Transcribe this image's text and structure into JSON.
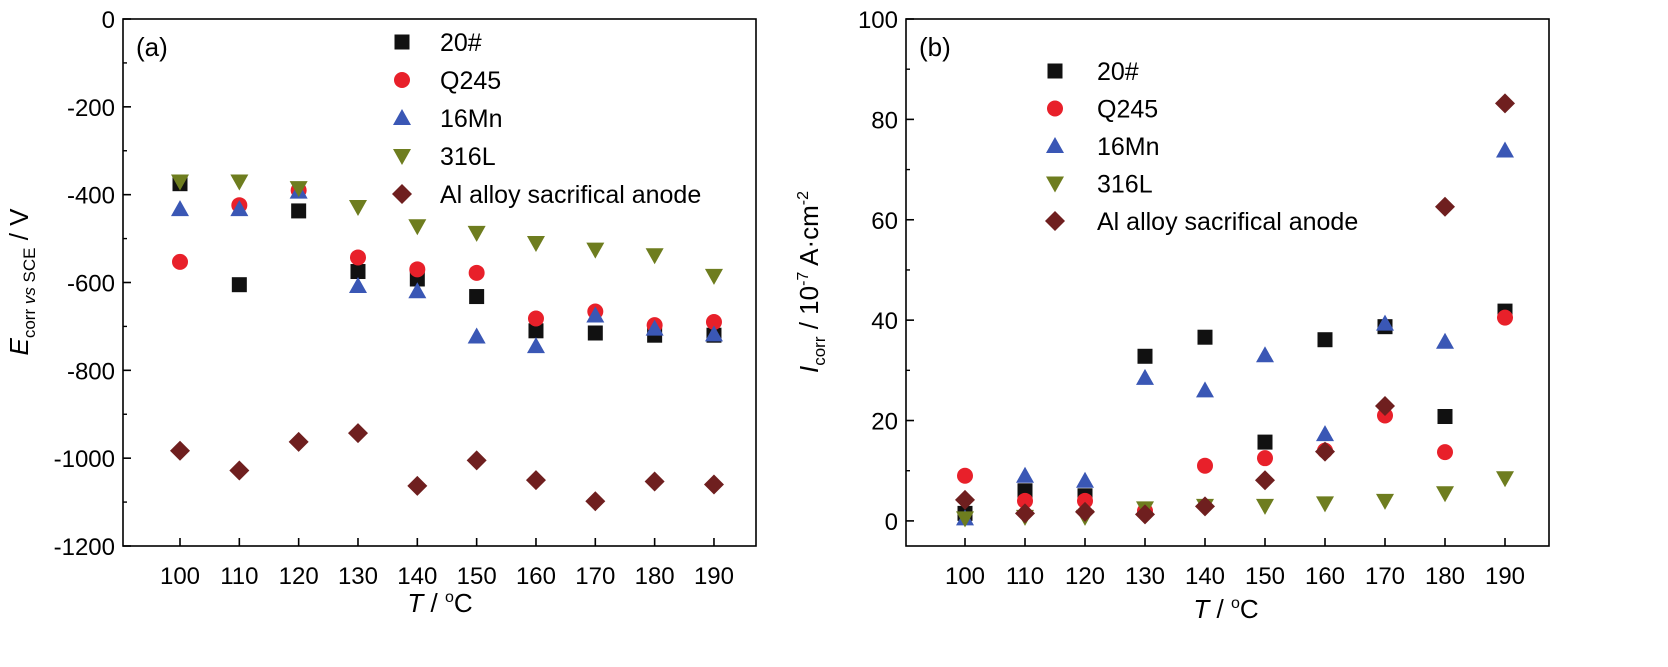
{
  "chart_data": [
    {
      "type": "scatter",
      "panel_label": "(a)",
      "x_title": {
        "var": "T",
        "sep": " / ",
        "unit_sup": "o",
        "unit": "C"
      },
      "y_title": {
        "var": "E",
        "sub1": "corr ",
        "sub2": "vs",
        "sub3": " SCE",
        "rest": " / V"
      },
      "x_categories": [
        "100",
        "110",
        "120",
        "130",
        "140",
        "150",
        "160",
        "170",
        "180",
        "190"
      ],
      "y_ticks": [
        "0",
        "-200",
        "-400",
        "-600",
        "-800",
        "-1000",
        "-1200"
      ],
      "ylim": [
        -1200,
        0
      ],
      "grid": false,
      "legend_position": "top-center",
      "series": [
        {
          "name": "20#",
          "marker": "square",
          "color": "#111111",
          "values": [
            -375,
            -605,
            -437,
            -575,
            -592,
            -632,
            -710,
            -715,
            -720,
            -720
          ]
        },
        {
          "name": "Q245",
          "marker": "circle",
          "color": "#e8202a",
          "values": [
            -553,
            -424,
            -390,
            -543,
            -570,
            -578,
            -682,
            -666,
            -697,
            -690
          ]
        },
        {
          "name": "16Mn",
          "marker": "triangle-up",
          "color": "#3a57b5",
          "values": [
            -433,
            -433,
            -393,
            -608,
            -620,
            -723,
            -745,
            -675,
            -705,
            -718
          ]
        },
        {
          "name": "316L",
          "marker": "triangle-down",
          "color": "#6e7d1f",
          "values": [
            -370,
            -370,
            -385,
            -428,
            -472,
            -487,
            -510,
            -525,
            -538,
            -585
          ]
        },
        {
          "name": "Al alloy sacrifical anode",
          "marker": "diamond",
          "color": "#6f1f1f",
          "values": [
            -983,
            -1028,
            -963,
            -943,
            -1063,
            -1005,
            -1050,
            -1098,
            -1053,
            -1060
          ]
        }
      ]
    },
    {
      "type": "scatter",
      "panel_label": "(b)",
      "x_title": {
        "var": "T",
        "sep": " / ",
        "unit_sup": "o",
        "unit": "C"
      },
      "y_title": {
        "var": "I",
        "sub": "corr",
        "mid": " / 10",
        "sup": "-7",
        "unit": " A·cm",
        "sup2": "-2"
      },
      "x_categories": [
        "100",
        "110",
        "120",
        "130",
        "140",
        "150",
        "160",
        "170",
        "180",
        "190"
      ],
      "y_ticks": [
        "0",
        "20",
        "40",
        "60",
        "80",
        "100"
      ],
      "ylim": [
        -5,
        100
      ],
      "grid": false,
      "legend_position": "top-left",
      "series": [
        {
          "name": "20#",
          "marker": "square",
          "color": "#111111",
          "values": [
            1.5,
            6.0,
            5.0,
            32.8,
            36.6,
            15.7,
            36.1,
            38.7,
            20.8,
            41.8
          ]
        },
        {
          "name": "Q245",
          "marker": "circle",
          "color": "#e8202a",
          "values": [
            9.0,
            4.0,
            4.0,
            2.0,
            11.0,
            12.5,
            14.0,
            21.0,
            13.7,
            40.5
          ]
        },
        {
          "name": "16Mn",
          "marker": "triangle-up",
          "color": "#3a57b5",
          "values": [
            0.5,
            9.0,
            8.0,
            28.5,
            26.0,
            33.0,
            17.3,
            39.3,
            35.7,
            73.8
          ]
        },
        {
          "name": "316L",
          "marker": "triangle-down",
          "color": "#6e7d1f",
          "values": [
            0.5,
            0.8,
            0.8,
            2.5,
            3.0,
            3.0,
            3.5,
            4.0,
            5.5,
            8.5
          ]
        },
        {
          "name": "Al alloy sacrifical anode",
          "marker": "diamond",
          "color": "#6f1f1f",
          "values": [
            4.2,
            1.5,
            1.8,
            1.3,
            2.9,
            8.1,
            13.8,
            22.9,
            62.6,
            83.2
          ]
        }
      ]
    }
  ]
}
